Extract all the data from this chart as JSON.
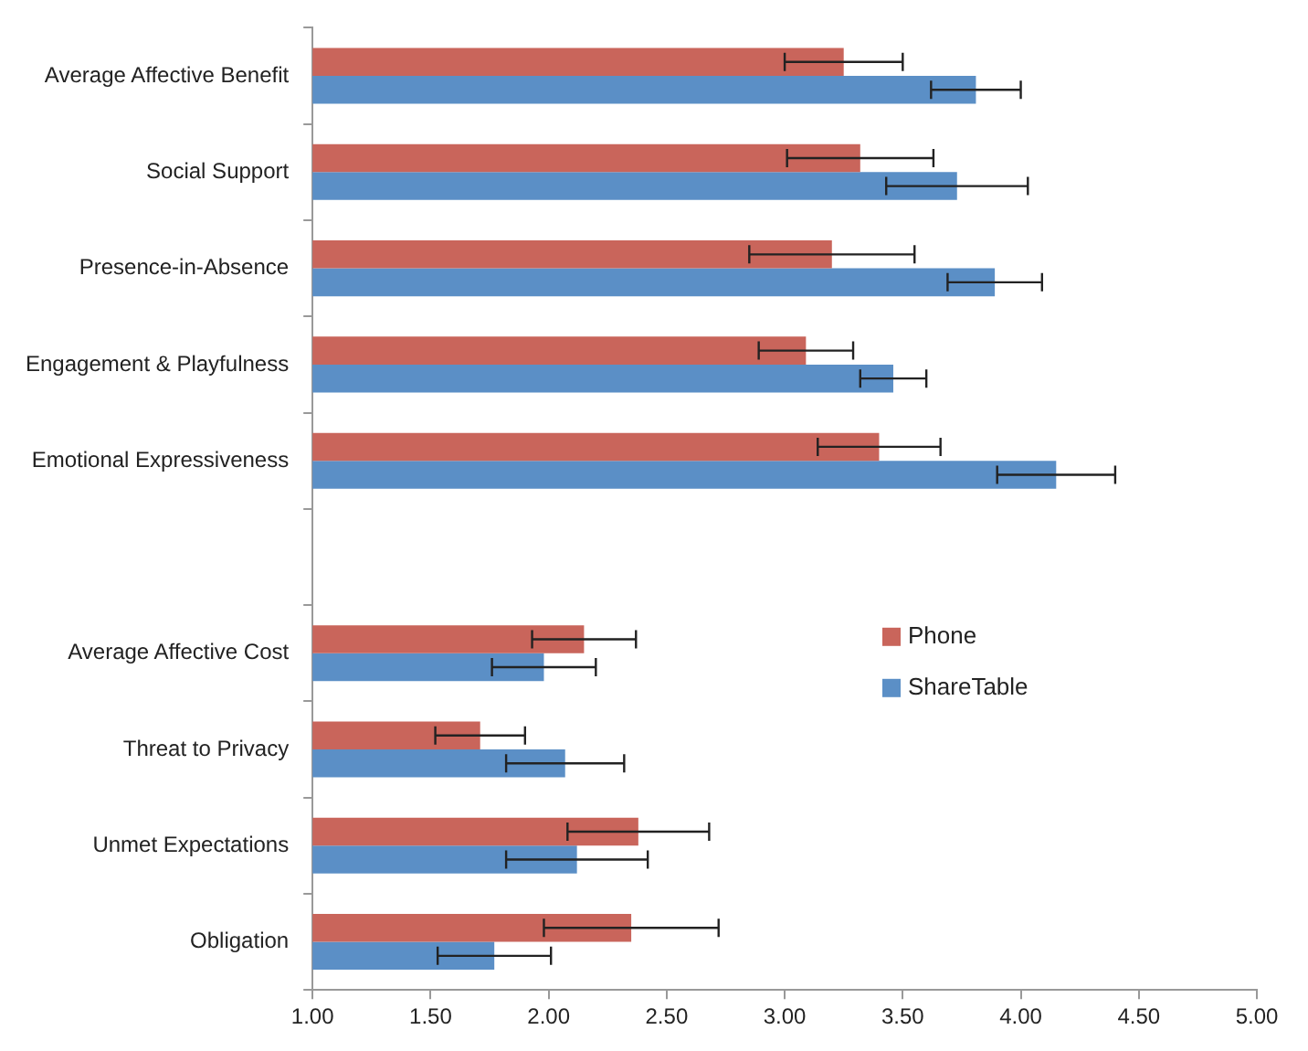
{
  "chart_data": {
    "type": "bar",
    "orientation": "horizontal",
    "categories": [
      "Average Affective Benefit",
      "Social Support",
      "Presence-in-Absence",
      "Engagement & Playfulness",
      "Emotional Expressiveness",
      null,
      "Average Affective Cost",
      "Threat to Privacy",
      "Unmet Expectations",
      "Obligation"
    ],
    "series": [
      {
        "name": "Phone",
        "color": "#c9655b",
        "values": [
          3.25,
          3.32,
          3.2,
          3.09,
          3.4,
          null,
          2.15,
          1.71,
          2.38,
          2.35
        ],
        "errors": [
          0.25,
          0.31,
          0.35,
          0.2,
          0.26,
          null,
          0.22,
          0.19,
          0.3,
          0.37
        ]
      },
      {
        "name": "ShareTable",
        "color": "#5b8fc6",
        "values": [
          3.81,
          3.73,
          3.89,
          3.46,
          4.15,
          null,
          1.98,
          2.07,
          2.12,
          1.77
        ],
        "errors": [
          0.19,
          0.3,
          0.2,
          0.14,
          0.25,
          null,
          0.22,
          0.25,
          0.3,
          0.24
        ]
      }
    ],
    "xlim": [
      1,
      5
    ],
    "xticks": [
      {
        "value": 1,
        "label": "1.00"
      },
      {
        "value": 1.5,
        "label": "1.50"
      },
      {
        "value": 2,
        "label": "2.00"
      },
      {
        "value": 2.5,
        "label": "2.50"
      },
      {
        "value": 3,
        "label": "3.00"
      },
      {
        "value": 3.5,
        "label": "3.50"
      },
      {
        "value": 4,
        "label": "4.00"
      },
      {
        "value": 4.5,
        "label": "4.50"
      },
      {
        "value": 5,
        "label": "5.00"
      }
    ],
    "grid": false,
    "legend": "right"
  }
}
